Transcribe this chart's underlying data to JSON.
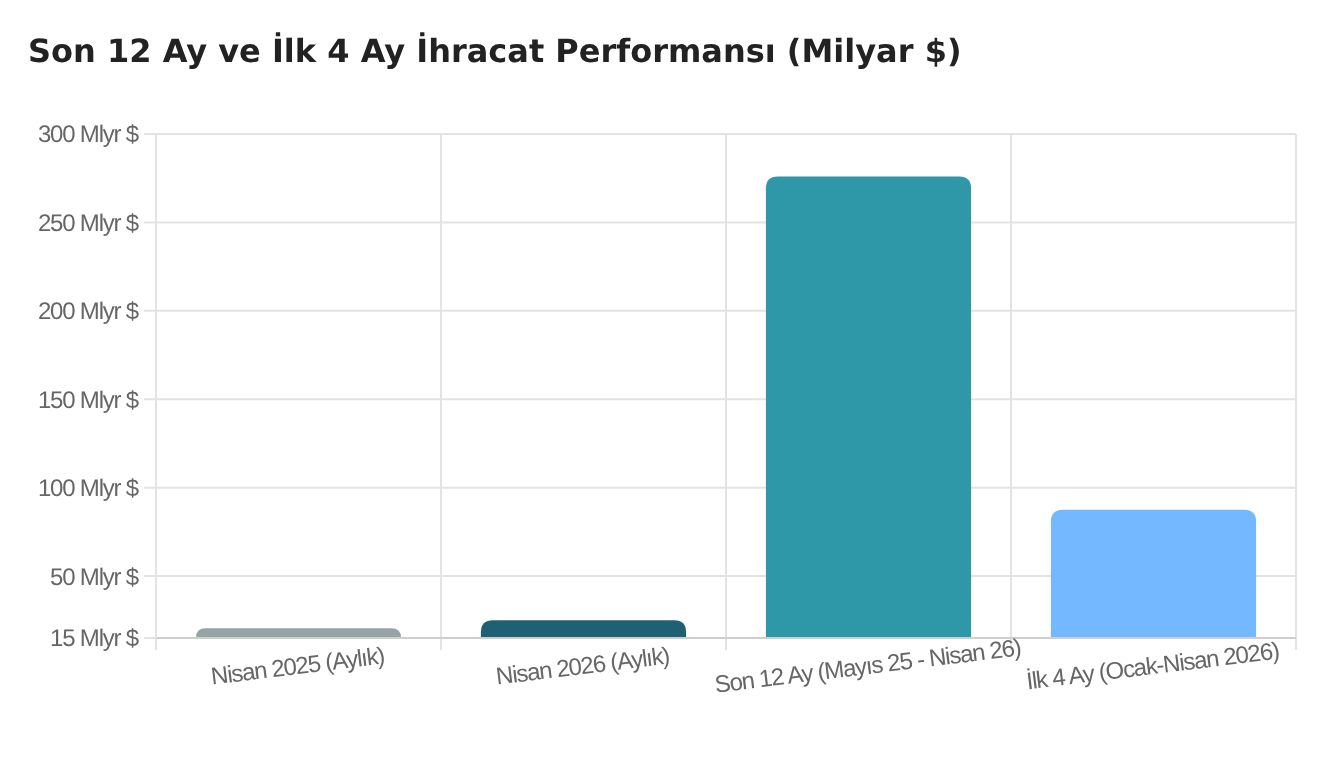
{
  "chart_data": {
    "type": "bar",
    "title": "Son 12 Ay ve İlk 4 Ay İhracat Performansı (Milyar $)",
    "categories": [
      "Nisan 2025 (Aylık)",
      "Nisan 2026 (Aylık)",
      "Son 12 Ay (Mayıs 25 - Nisan 26)",
      "İlk 4 Ay (Ocak-Nisan 2026)"
    ],
    "values": [
      20.5,
      25,
      276,
      87.5
    ],
    "colors": [
      "#95a5a6",
      "#1f6073",
      "#2e98a8",
      "#74b9ff"
    ],
    "ylim": [
      15,
      300
    ],
    "yticks": [
      {
        "value": 15,
        "label": "15 Mlyr $"
      },
      {
        "value": 50,
        "label": "50 Mlyr $"
      },
      {
        "value": 100,
        "label": "100 Mlyr $"
      },
      {
        "value": 150,
        "label": "150 Mlyr $"
      },
      {
        "value": 200,
        "label": "200 Mlyr $"
      },
      {
        "value": 250,
        "label": "250 Mlyr $"
      },
      {
        "value": 300,
        "label": "300 Mlyr $"
      }
    ],
    "grid": true
  }
}
